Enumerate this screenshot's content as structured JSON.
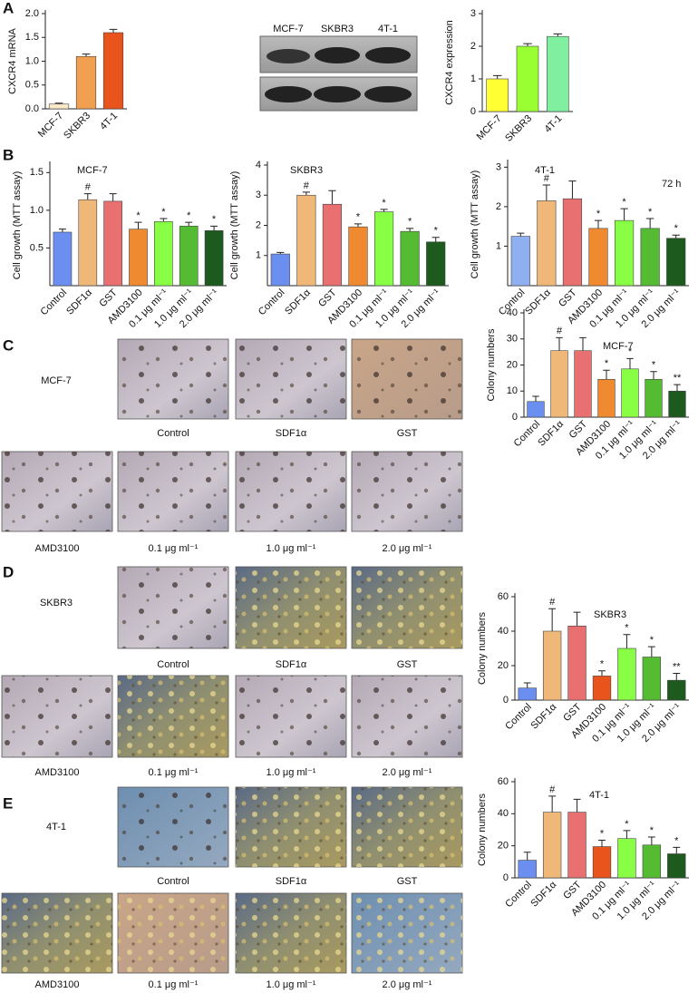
{
  "panel_letters": [
    "A",
    "B",
    "C",
    "D",
    "E"
  ],
  "blot": {
    "labels": [
      "MCF-7",
      "SKBR3",
      "4T-1"
    ]
  },
  "micrographs": [
    {
      "cell_line": "MCF-7",
      "captions": [
        "Control",
        "SDF1α",
        "GST",
        "AMD3100",
        "0.1 μg ml⁻¹",
        "1.0 μg ml⁻¹",
        "2.0 μg ml⁻¹"
      ]
    },
    {
      "cell_line": "SKBR3",
      "captions": [
        "Control",
        "SDF1α",
        "GST",
        "AMD3100",
        "0.1 μg ml⁻¹",
        "1.0 μg ml⁻¹",
        "2.0 μg ml⁻¹"
      ]
    },
    {
      "cell_line": "4T-1",
      "captions": [
        "Control",
        "SDF1α",
        "GST",
        "AMD3100",
        "0.1 μg ml⁻¹",
        "1.0 μg ml⁻¹",
        "2.0 μg ml⁻¹"
      ]
    }
  ],
  "chart_data": [
    {
      "type": "bar",
      "y_label": "CXCR4 mRNA",
      "categories": [
        "MCF-7",
        "SKBR3",
        "4T-1"
      ],
      "values": [
        0.1,
        1.1,
        1.6
      ],
      "errors": [
        0.02,
        0.05,
        0.07
      ],
      "colors": [
        "#fde8c8",
        "#f0a050",
        "#e8541c"
      ],
      "ylim": [
        0,
        2.0
      ],
      "yticks": [
        {
          "value": 0,
          "label": "0.0"
        },
        0.5,
        {
          "value": 1,
          "label": "1.0"
        },
        1.5,
        {
          "value": 2,
          "label": "2.0"
        }
      ]
    },
    {
      "type": "bar",
      "y_label": "CXCR4 expression",
      "categories": [
        "MCF-7",
        "SKBR3",
        "4T-1"
      ],
      "values": [
        1.0,
        2.0,
        2.3
      ],
      "errors": [
        0.1,
        0.08,
        0.08
      ],
      "colors": [
        "#ffff33",
        "#99ff33",
        "#80f0a0"
      ],
      "ylim": [
        0,
        3
      ],
      "yticks": [
        0,
        1,
        2,
        3
      ]
    },
    {
      "type": "bar",
      "title": "MCF-7",
      "y_label": "Cell growth (MTT assay)",
      "categories": [
        "Control",
        "SDF1α",
        "GST",
        "AMD3100",
        "0.1 μg ml⁻¹",
        "1.0 μg ml⁻¹",
        "2.0 μg ml⁻¹"
      ],
      "values": [
        0.71,
        1.14,
        1.12,
        0.75,
        0.85,
        0.79,
        0.73
      ],
      "errors": [
        0.04,
        0.08,
        0.1,
        0.09,
        0.04,
        0.05,
        0.06
      ],
      "marks": [
        null,
        "#",
        null,
        "*",
        "*",
        "*",
        "*"
      ],
      "colors": [
        "#6a8ff0",
        "#f0b878",
        "#e87070",
        "#f08a30",
        "#88ff44",
        "#55bb33",
        "#1d5a1d"
      ],
      "ylim": [
        0,
        1.6
      ],
      "yticks": [
        0.5,
        {
          "value": 1,
          "label": "1.0"
        },
        1.5
      ]
    },
    {
      "type": "bar",
      "title": "SKBR3",
      "y_label": "Cell growth (MTT assay)",
      "categories": [
        "Control",
        "SDF1α",
        "GST",
        "AMD3100",
        "0.1 μg ml⁻¹",
        "1.0 μg ml⁻¹",
        "2.0 μg ml⁻¹"
      ],
      "values": [
        1.05,
        3.0,
        2.7,
        1.95,
        2.45,
        1.8,
        1.45
      ],
      "errors": [
        0.05,
        0.1,
        0.45,
        0.1,
        0.08,
        0.1,
        0.15
      ],
      "marks": [
        null,
        "#",
        null,
        "*",
        "*",
        "*",
        "*"
      ],
      "colors": [
        "#6a8ff0",
        "#f0b878",
        "#e87070",
        "#f08a30",
        "#88ff44",
        "#55bb33",
        "#1d5a1d"
      ],
      "ylim": [
        0,
        4
      ],
      "yticks": [
        1,
        2,
        3,
        4
      ]
    },
    {
      "type": "bar",
      "title": "4T-1",
      "annotation": "72 h",
      "y_label": "Cell growth (MTT assay)",
      "categories": [
        "Control",
        "SDF1α",
        "GST",
        "AMD3100",
        "0.1 μg ml⁻¹",
        "1.0 μg ml⁻¹",
        "2.0 μg ml⁻¹"
      ],
      "values": [
        1.25,
        2.15,
        2.2,
        1.45,
        1.65,
        1.45,
        1.2
      ],
      "errors": [
        0.08,
        0.4,
        0.45,
        0.2,
        0.3,
        0.25,
        0.08
      ],
      "marks": [
        null,
        "#",
        null,
        "*",
        "*",
        "*",
        "*"
      ],
      "colors": [
        "#8fb0f0",
        "#f0b878",
        "#e87070",
        "#f08a30",
        "#88ff44",
        "#55bb33",
        "#1d5a1d"
      ],
      "ylim": [
        0,
        3.1
      ],
      "yticks": [
        1,
        2,
        3
      ]
    },
    {
      "type": "bar",
      "title": "MCF-7",
      "y_label": "Colony numbers",
      "categories": [
        "Control",
        "SDF1α",
        "GST",
        "AMD3100",
        "0.1 μg ml⁻¹",
        "1.0 μg ml⁻¹",
        "2.0 μg ml⁻¹"
      ],
      "values": [
        6,
        25.5,
        25.5,
        14.5,
        18.5,
        14.5,
        10
      ],
      "errors": [
        2,
        5,
        5,
        3.5,
        4,
        3,
        2.5
      ],
      "marks": [
        null,
        "#",
        null,
        "*",
        "*",
        "*",
        "**"
      ],
      "colors": [
        "#6a8ff0",
        "#f0b878",
        "#e87070",
        "#f08a30",
        "#88ff44",
        "#55bb33",
        "#1d5a1d"
      ],
      "ylim": [
        0,
        40
      ],
      "yticks": [
        0,
        10,
        20,
        30,
        40
      ]
    },
    {
      "type": "bar",
      "title": "SKBR3",
      "y_label": "Colony numbers",
      "categories": [
        "Control",
        "SDF1α",
        "GST",
        "AMD3100",
        "0.1 μg ml⁻¹",
        "1.0 μg ml⁻¹",
        "2.0 μg ml⁻¹"
      ],
      "values": [
        7,
        40,
        43,
        14,
        30,
        25,
        11.5
      ],
      "errors": [
        3,
        13,
        8,
        3,
        8,
        6,
        4
      ],
      "marks": [
        null,
        "#",
        null,
        "*",
        "*",
        "*",
        "**"
      ],
      "colors": [
        "#6a8ff0",
        "#f0b878",
        "#e87070",
        "#e8541c",
        "#88ff44",
        "#55bb33",
        "#1d5a1d"
      ],
      "ylim": [
        0,
        60
      ],
      "yticks": [
        0,
        20,
        40,
        60
      ]
    },
    {
      "type": "bar",
      "title": "4T-1",
      "y_label": "Colony numbers",
      "categories": [
        "Control",
        "SDF1α",
        "GST",
        "AMD3100",
        "0.1 μg ml⁻¹",
        "1.0 μg ml⁻¹",
        "2.0 μg ml⁻¹"
      ],
      "values": [
        11,
        41,
        41,
        19.5,
        24.5,
        20.5,
        15
      ],
      "errors": [
        5,
        10,
        8,
        4,
        5,
        5,
        4
      ],
      "marks": [
        null,
        "#",
        null,
        "*",
        "*",
        "*",
        "*"
      ],
      "colors": [
        "#6a8ff0",
        "#f0b878",
        "#e87070",
        "#e8541c",
        "#88ff44",
        "#55bb33",
        "#1d5a1d"
      ],
      "ylim": [
        0,
        60
      ],
      "yticks": [
        0,
        20,
        40,
        60
      ]
    }
  ]
}
